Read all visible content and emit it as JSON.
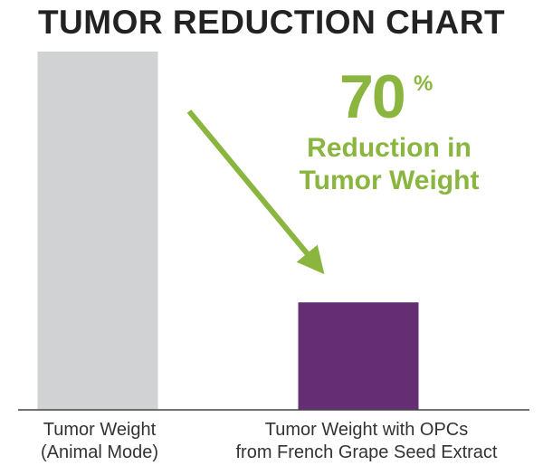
{
  "chart_data": {
    "type": "bar",
    "title": "TUMOR REDUCTION CHART",
    "categories": [
      "Tumor Weight\n(Animal Mode)",
      "Tumor Weight with OPCs\nfrom French Grape Seed Extract"
    ],
    "values": [
      100,
      30
    ],
    "ylim": [
      0,
      100
    ],
    "grid": false,
    "colors": [
      "#d1d2d4",
      "#642d74"
    ],
    "annotation": {
      "value": "70",
      "unit": "%",
      "text": "Reduction in\nTumor Weight",
      "color": "#8ab63f"
    }
  }
}
